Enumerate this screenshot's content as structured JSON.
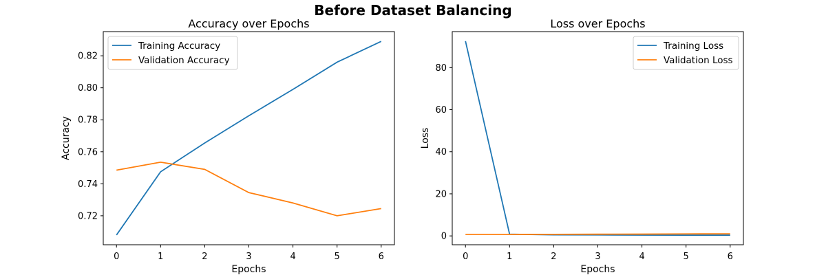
{
  "figure": {
    "title": "Before Dataset Balancing"
  },
  "chart_data": [
    {
      "type": "line",
      "title": "Accuracy over Epochs",
      "xlabel": "Epochs",
      "ylabel": "Accuracy",
      "x": [
        0,
        1,
        2,
        3,
        4,
        5,
        6
      ],
      "xticks": [
        0,
        1,
        2,
        3,
        4,
        5,
        6
      ],
      "yticks": [
        0.72,
        0.74,
        0.76,
        0.78,
        0.8,
        0.82
      ],
      "xlim": [
        -0.3,
        6.3
      ],
      "ylim": [
        0.7019,
        0.8351
      ],
      "legend": "top-left",
      "grid": false,
      "series": [
        {
          "name": "Training Accuracy",
          "color": "#1f77b4",
          "values": [
            0.708,
            0.7475,
            0.7655,
            0.7825,
            0.799,
            0.816,
            0.829
          ]
        },
        {
          "name": "Validation Accuracy",
          "color": "#ff7f0e",
          "values": [
            0.7485,
            0.7535,
            0.749,
            0.7345,
            0.728,
            0.72,
            0.7245
          ]
        }
      ]
    },
    {
      "type": "line",
      "title": "Loss over Epochs",
      "xlabel": "Epochs",
      "ylabel": "Loss",
      "x": [
        0,
        1,
        2,
        3,
        4,
        5,
        6
      ],
      "xticks": [
        0,
        1,
        2,
        3,
        4,
        5,
        6
      ],
      "yticks": [
        0,
        20,
        40,
        60,
        80
      ],
      "xlim": [
        -0.3,
        6.3
      ],
      "ylim": [
        -4.2,
        97.1
      ],
      "legend": "top-right",
      "grid": false,
      "series": [
        {
          "name": "Training Loss",
          "color": "#1f77b4",
          "values": [
            92.6,
            0.8,
            0.5,
            0.45,
            0.4,
            0.35,
            0.35
          ]
        },
        {
          "name": "Validation Loss",
          "color": "#ff7f0e",
          "values": [
            0.75,
            0.7,
            0.75,
            0.8,
            0.85,
            0.95,
            1.0
          ]
        }
      ]
    }
  ]
}
